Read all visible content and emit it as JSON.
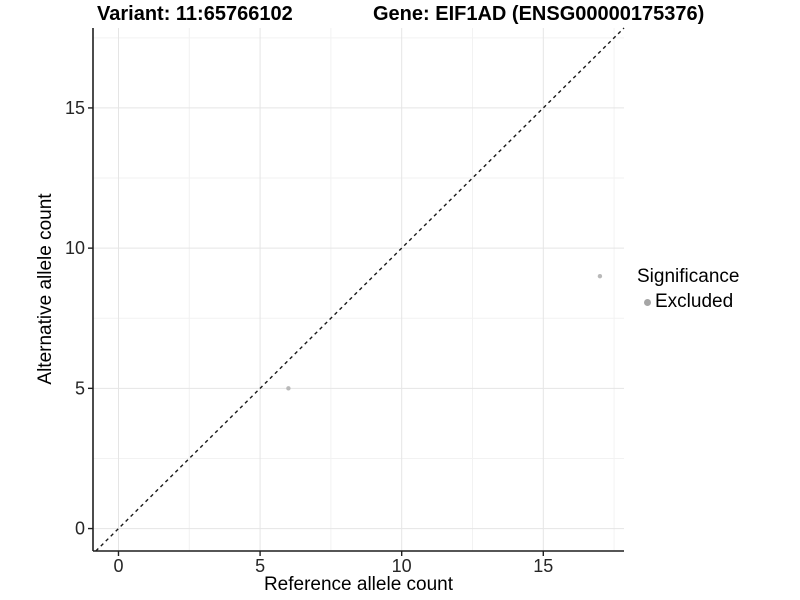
{
  "header": {
    "variant_title": "Variant: 11:65766102",
    "gene_title": "Gene: EIF1AD (ENSG00000175376)"
  },
  "legend": {
    "title": "Significance",
    "items": [
      {
        "label": "Excluded",
        "marker": "circle-icon",
        "color": "#a6a6a6"
      }
    ]
  },
  "chart_data": {
    "type": "scatter",
    "title": "Variant: 11:65766102 | Gene: EIF1AD (ENSG00000175376)",
    "xlabel": "Reference allele count",
    "ylabel": "Alternative allele count",
    "xlim": [
      -0.9,
      17.85
    ],
    "ylim": [
      -0.8,
      17.85
    ],
    "xticks": [
      0,
      5,
      10,
      15
    ],
    "yticks": [
      0,
      5,
      10,
      15
    ],
    "x_minor_ticks": [
      2.5,
      7.5,
      12.5,
      17.5
    ],
    "y_minor_ticks": [
      2.5,
      7.5,
      12.5,
      17.5
    ],
    "grid": "major+minor",
    "legend_position": "right",
    "series": [
      {
        "name": "Excluded",
        "marker": "circle",
        "color": "#b9b9b9",
        "point_radius": 2.2,
        "points": [
          {
            "x": 6,
            "y": 5
          },
          {
            "x": 17,
            "y": 9
          }
        ]
      }
    ],
    "reference_line": {
      "type": "identity y=x",
      "style": "dashed",
      "color": "#1a1a1a"
    }
  },
  "colors": {
    "background": "#ffffff",
    "axis_line": "#1f1f1f",
    "tick_label": "#262626",
    "grid_major": "#e5e5e5",
    "grid_minor": "#f2f2f2",
    "point": "#b9b9b9",
    "legend_point": "#a6a6a6"
  }
}
